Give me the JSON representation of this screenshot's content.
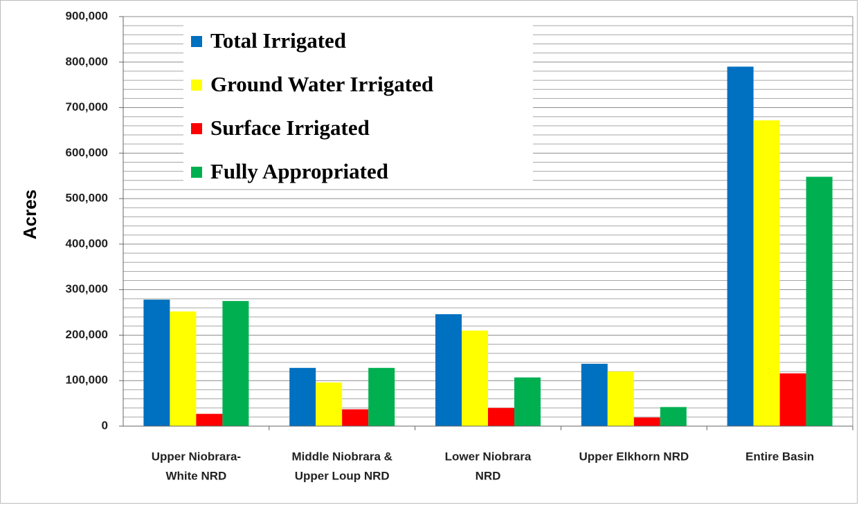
{
  "chart_data": {
    "type": "bar",
    "y_label": "Acres",
    "categories": [
      [
        "Upper Niobrara-",
        "White NRD"
      ],
      [
        "Middle Niobrara &",
        "Upper Loup NRD"
      ],
      [
        "Lower Niobrara",
        "NRD"
      ],
      [
        "Upper Elkhorn NRD"
      ],
      [
        "Entire Basin"
      ]
    ],
    "series": [
      {
        "name": "Total Irrigated",
        "color": "#0070c0",
        "values": [
          278000,
          128000,
          246000,
          137000,
          790000
        ]
      },
      {
        "name": "Ground Water Irrigated",
        "color": "#ffff00",
        "values": [
          252000,
          96000,
          210000,
          120000,
          672000
        ]
      },
      {
        "name": "Surface Irrigated",
        "color": "#ff0000",
        "values": [
          27000,
          37000,
          40000,
          19000,
          116000
        ]
      },
      {
        "name": "Fully Appropriated",
        "color": "#00b050",
        "values": [
          275000,
          128000,
          107000,
          42000,
          548000
        ]
      }
    ],
    "ylim": [
      0,
      900000
    ],
    "yticks": [
      {
        "value": 0,
        "label": "0"
      },
      {
        "value": 100000,
        "label": "100,000"
      },
      {
        "value": 200000,
        "label": "200,000"
      },
      {
        "value": 300000,
        "label": "300,000"
      },
      {
        "value": 400000,
        "label": "400,000"
      },
      {
        "value": 500000,
        "label": "500,000"
      },
      {
        "value": 600000,
        "label": "600,000"
      },
      {
        "value": 700000,
        "label": "700,000"
      },
      {
        "value": 800000,
        "label": "800,000"
      },
      {
        "value": 900000,
        "label": "900,000"
      }
    ],
    "minor_yticks": [
      20000,
      40000,
      60000,
      80000,
      120000,
      140000,
      160000,
      180000,
      220000,
      240000,
      260000,
      280000,
      320000,
      340000,
      360000,
      380000,
      420000,
      440000,
      460000,
      480000,
      520000,
      540000,
      560000,
      580000,
      620000,
      640000,
      660000,
      680000,
      720000,
      740000,
      760000,
      780000,
      820000,
      840000,
      860000,
      880000
    ],
    "grid": true,
    "legend": "top-left"
  }
}
